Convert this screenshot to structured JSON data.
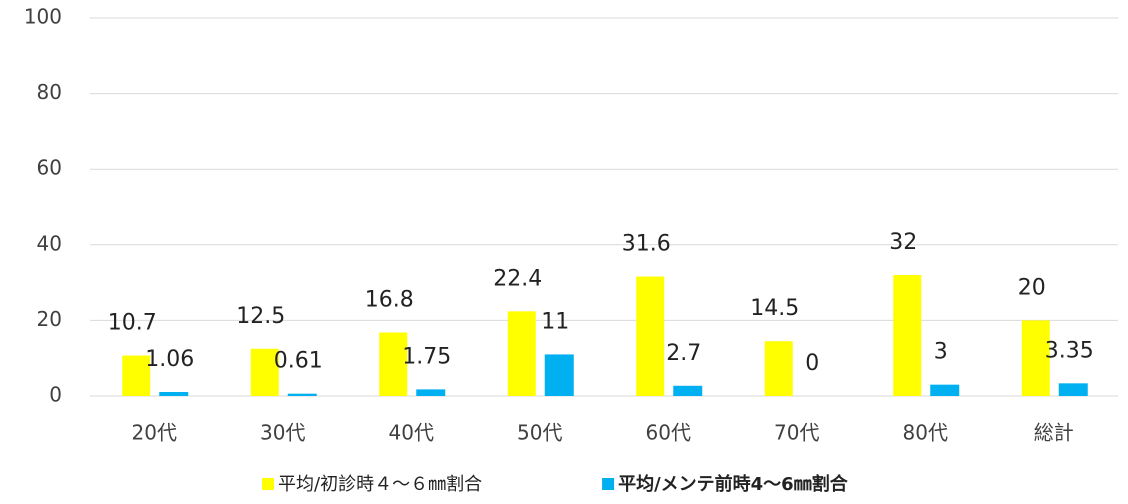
{
  "chart_data": {
    "type": "bar",
    "categories": [
      "20代",
      "30代",
      "40代",
      "50代",
      "60代",
      "70代",
      "80代",
      "総計"
    ],
    "series": [
      {
        "name": "平均/初診時４～６㎜割合",
        "color": "#ffff00",
        "values": [
          10.7,
          12.5,
          16.8,
          22.4,
          31.6,
          14.5,
          32,
          20
        ]
      },
      {
        "name": "平均/メンテ前時4～6㎜割合",
        "color": "#00b0f0",
        "values": [
          1.06,
          0.61,
          1.75,
          11,
          2.7,
          0,
          3,
          3.35
        ]
      }
    ],
    "ylim": [
      0,
      100
    ],
    "yticks": [
      0,
      20,
      40,
      60,
      80,
      100
    ],
    "grid": true,
    "legend": "bottom"
  }
}
